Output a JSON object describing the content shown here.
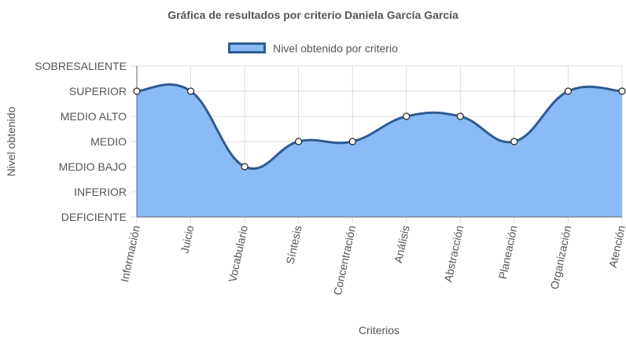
{
  "chart_data": {
    "type": "area",
    "title": "Gráfica de resultados por criterio Daniela García García",
    "xlabel": "Criterios",
    "ylabel": "Nivel obtenido",
    "categories": [
      "Información",
      "Juicio",
      "Vocabulario",
      "Síntesis",
      "Concentración",
      "Análisis",
      "Abstracción",
      "Planeación",
      "Organización",
      "Atención"
    ],
    "y_levels": [
      "DEFICIENTE",
      "INFERIOR",
      "MEDIO BAJO",
      "MEDIO",
      "MEDIO ALTO",
      "SUPERIOR",
      "SOBRESALIENTE"
    ],
    "ylim": [
      0,
      6
    ],
    "series": [
      {
        "name": "Nivel obtenido por criterio",
        "values": [
          5,
          5,
          2,
          3,
          3,
          4,
          4,
          3,
          5,
          5
        ]
      }
    ],
    "legend_position": "top",
    "grid": true,
    "colors": {
      "fill": "#8bbbf7",
      "line": "#2f5b92",
      "grid": "#dddddd",
      "text": "#555555",
      "point": "#ffffff"
    }
  }
}
